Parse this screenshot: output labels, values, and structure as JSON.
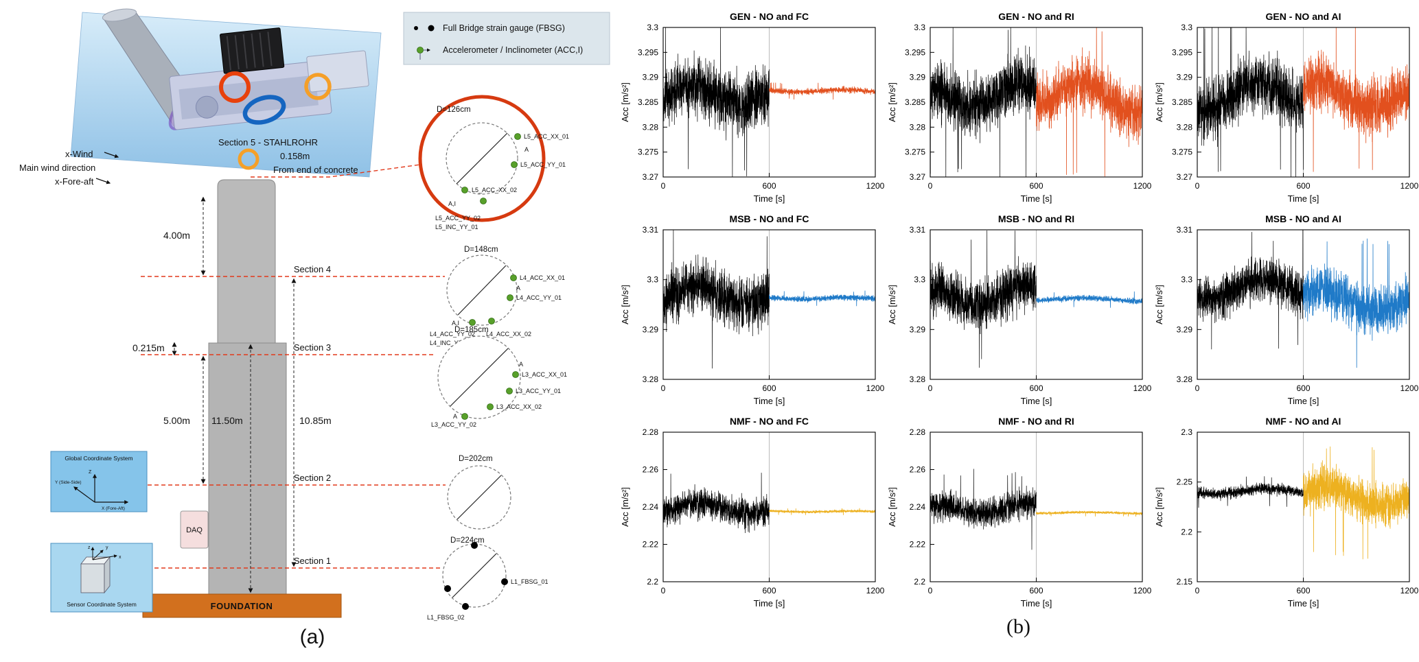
{
  "captions": {
    "a": "(a)",
    "b": "(b)"
  },
  "legend": {
    "fbsg": "Full Bridge strain gauge (FBSG)",
    "acc": "Accelerometer / Inclinometer (ACC,I)"
  },
  "figure_a": {
    "wind": {
      "l1": "x-Wind",
      "l2": "Main wind direction",
      "l3": "x-Fore-aft"
    },
    "section5": {
      "title": "Section 5 - STAHLROHR",
      "offset": "0.158m",
      "offset_note": "From end of concrete",
      "diameter": "D=126cm",
      "sensors": [
        "L5_ACC_XX_01",
        "L5_ACC_YY_01",
        "L5_ACC_XX_02",
        "L5_ACC_YY_02",
        "L5_INC_YY_01"
      ],
      "markers": [
        "A",
        "A,I"
      ]
    },
    "section4": {
      "name": "Section 4",
      "diameter": "D=148cm",
      "sensors": [
        "L4_ACC_XX_01",
        "L4_ACC_YY_01",
        "L4_ACC_YY_02",
        "L4_ACC_XX_02",
        "L4_INC_YY_01"
      ],
      "markers": [
        "A",
        "A,I"
      ]
    },
    "section3": {
      "name": "Section 3",
      "diameter": "D=185cm",
      "sensors": [
        "L3_ACC_XX_01",
        "L3_ACC_YY_01",
        "L3_ACC_XX_02",
        "L3_ACC_YY_02"
      ],
      "markers": [
        "A",
        "A"
      ]
    },
    "section2": {
      "name": "Section 2",
      "diameter": "D=202cm"
    },
    "section1": {
      "name": "Section 1",
      "diameter": "D=224cm",
      "sensors": [
        "L1_FBSG_01",
        "L1_FBSG_02"
      ]
    },
    "dims": {
      "top": "4.00m",
      "step": "0.215m",
      "mid": "5.00m",
      "concrete": "11.50m",
      "right": "10.85m"
    },
    "daq": "DAQ",
    "foundation": "FOUNDATION",
    "coord_global": {
      "title": "Global Coordinate System",
      "z": "Z",
      "y": "Y (Side-Side)",
      "x": "X (Fore-Aft)"
    },
    "coord_sensor": {
      "title": "Sensor Coordinate System",
      "z": "z",
      "y": "y",
      "x": "x"
    }
  },
  "colors": {
    "orange": "#E2501E",
    "blue": "#1F7AC8",
    "yellow": "#EDB120",
    "black": "#000000"
  },
  "chart_data": [
    {
      "type": "line",
      "title": "GEN - NO and FC",
      "xlabel": "Time [s]",
      "ylabel": "Acc [m/s²]",
      "xlim": [
        0,
        1200
      ],
      "xticks": [
        0,
        600,
        1200
      ],
      "ylim": [
        3.27,
        3.3
      ],
      "yticks": [
        3.27,
        3.275,
        3.28,
        3.285,
        3.29,
        3.295,
        3.3
      ],
      "divider_x": 600,
      "series": [
        {
          "label": "NO",
          "color": "#000000",
          "t": [
            0,
            600
          ],
          "y_mean": 3.2855,
          "y_halfband": 0.0135
        },
        {
          "label": "FC",
          "color": "#E2501E",
          "t": [
            600,
            1200
          ],
          "y_mean": 3.2872,
          "y_halfband": 0.0014
        }
      ]
    },
    {
      "type": "line",
      "title": "GEN - NO and RI",
      "xlabel": "Time [s]",
      "ylabel": "Acc [m/s²]",
      "xlim": [
        0,
        1200
      ],
      "xticks": [
        0,
        600,
        1200
      ],
      "ylim": [
        3.27,
        3.3
      ],
      "yticks": [
        3.27,
        3.275,
        3.28,
        3.285,
        3.29,
        3.295,
        3.3
      ],
      "divider_x": 600,
      "series": [
        {
          "label": "NO",
          "color": "#000000",
          "t": [
            0,
            600
          ],
          "y_mean": 3.2855,
          "y_halfband": 0.0135
        },
        {
          "label": "RI",
          "color": "#E2501E",
          "t": [
            600,
            1200
          ],
          "y_mean": 3.2855,
          "y_halfband": 0.013
        }
      ]
    },
    {
      "type": "line",
      "title": "GEN - NO and AI",
      "xlabel": "Time [s]",
      "ylabel": "Acc [m/s²]",
      "xlim": [
        0,
        1200
      ],
      "xticks": [
        0,
        600,
        1200
      ],
      "ylim": [
        3.27,
        3.3
      ],
      "yticks": [
        3.27,
        3.275,
        3.28,
        3.285,
        3.29,
        3.295,
        3.3
      ],
      "divider_x": 600,
      "series": [
        {
          "label": "NO",
          "color": "#000000",
          "t": [
            0,
            600
          ],
          "y_mean": 3.2855,
          "y_halfband": 0.0135
        },
        {
          "label": "AI",
          "color": "#E2501E",
          "t": [
            600,
            1200
          ],
          "y_mean": 3.2855,
          "y_halfband": 0.0132
        }
      ]
    },
    {
      "type": "line",
      "title": "MSB - NO and FC",
      "xlabel": "Time [s]",
      "ylabel": "Acc [m/s²]",
      "xlim": [
        0,
        1200
      ],
      "xticks": [
        0,
        600,
        1200
      ],
      "ylim": [
        3.28,
        3.31
      ],
      "yticks": [
        3.28,
        3.29,
        3.3,
        3.31
      ],
      "divider_x": 600,
      "series": [
        {
          "label": "NO",
          "color": "#000000",
          "t": [
            0,
            600
          ],
          "y_mean": 3.296,
          "y_halfband": 0.012
        },
        {
          "label": "FC",
          "color": "#1F7AC8",
          "t": [
            600,
            1200
          ],
          "y_mean": 3.2962,
          "y_halfband": 0.0013
        }
      ]
    },
    {
      "type": "line",
      "title": "MSB - NO and RI",
      "xlabel": "Time [s]",
      "ylabel": "Acc [m/s²]",
      "xlim": [
        0,
        1200
      ],
      "xticks": [
        0,
        600,
        1200
      ],
      "ylim": [
        3.28,
        3.31
      ],
      "yticks": [
        3.28,
        3.29,
        3.3,
        3.31
      ],
      "divider_x": 600,
      "series": [
        {
          "label": "NO",
          "color": "#000000",
          "t": [
            0,
            600
          ],
          "y_mean": 3.296,
          "y_halfband": 0.0115
        },
        {
          "label": "RI",
          "color": "#1F7AC8",
          "t": [
            600,
            1200
          ],
          "y_mean": 3.296,
          "y_halfband": 0.0013
        }
      ]
    },
    {
      "type": "line",
      "title": "MSB - NO and AI",
      "xlabel": "Time [s]",
      "ylabel": "Acc [m/s²]",
      "xlim": [
        0,
        1200
      ],
      "xticks": [
        0,
        600,
        1200
      ],
      "ylim": [
        3.28,
        3.31
      ],
      "yticks": [
        3.28,
        3.29,
        3.3,
        3.31
      ],
      "divider_x": 600,
      "series": [
        {
          "label": "NO",
          "color": "#000000",
          "t": [
            0,
            600
          ],
          "y_mean": 3.2975,
          "y_halfband": 0.01
        },
        {
          "label": "AI",
          "color": "#1F7AC8",
          "t": [
            600,
            1200
          ],
          "y_mean": 3.295,
          "y_halfband": 0.011
        }
      ]
    },
    {
      "type": "line",
      "title": "NMF - NO and FC",
      "xlabel": "Time [s]",
      "ylabel": "Acc [m/s²]",
      "xlim": [
        0,
        1200
      ],
      "xticks": [
        0,
        600,
        1200
      ],
      "ylim": [
        2.2,
        2.28
      ],
      "yticks": [
        2.2,
        2.22,
        2.24,
        2.26,
        2.28
      ],
      "divider_x": 600,
      "series": [
        {
          "label": "NO",
          "color": "#000000",
          "t": [
            0,
            600
          ],
          "y_mean": 2.238,
          "y_halfband": 0.018
        },
        {
          "label": "FC",
          "color": "#EDB120",
          "t": [
            600,
            1200
          ],
          "y_mean": 2.2375,
          "y_halfband": 0.0016
        }
      ]
    },
    {
      "type": "line",
      "title": "NMF - NO and RI",
      "xlabel": "Time [s]",
      "ylabel": "Acc [m/s²]",
      "xlim": [
        0,
        1200
      ],
      "xticks": [
        0,
        600,
        1200
      ],
      "ylim": [
        2.2,
        2.28
      ],
      "yticks": [
        2.2,
        2.22,
        2.24,
        2.26,
        2.28
      ],
      "divider_x": 600,
      "series": [
        {
          "label": "NO",
          "color": "#000000",
          "t": [
            0,
            600
          ],
          "y_mean": 2.238,
          "y_halfband": 0.018
        },
        {
          "label": "RI",
          "color": "#EDB120",
          "t": [
            600,
            1200
          ],
          "y_mean": 2.2368,
          "y_halfband": 0.0016
        }
      ]
    },
    {
      "type": "line",
      "title": "NMF - NO and AI",
      "xlabel": "Time [s]",
      "ylabel": "Acc [m/s²]",
      "xlim": [
        0,
        1200
      ],
      "xticks": [
        0,
        600,
        1200
      ],
      "ylim": [
        2.15,
        2.3
      ],
      "yticks": [
        2.15,
        2.2,
        2.25,
        2.3
      ],
      "divider_x": 600,
      "series": [
        {
          "label": "NO",
          "color": "#000000",
          "t": [
            0,
            600
          ],
          "y_mean": 2.24,
          "y_halfband": 0.013
        },
        {
          "label": "AI",
          "color": "#EDB120",
          "t": [
            600,
            1200
          ],
          "y_mean": 2.233,
          "y_halfband": 0.048
        }
      ]
    }
  ]
}
